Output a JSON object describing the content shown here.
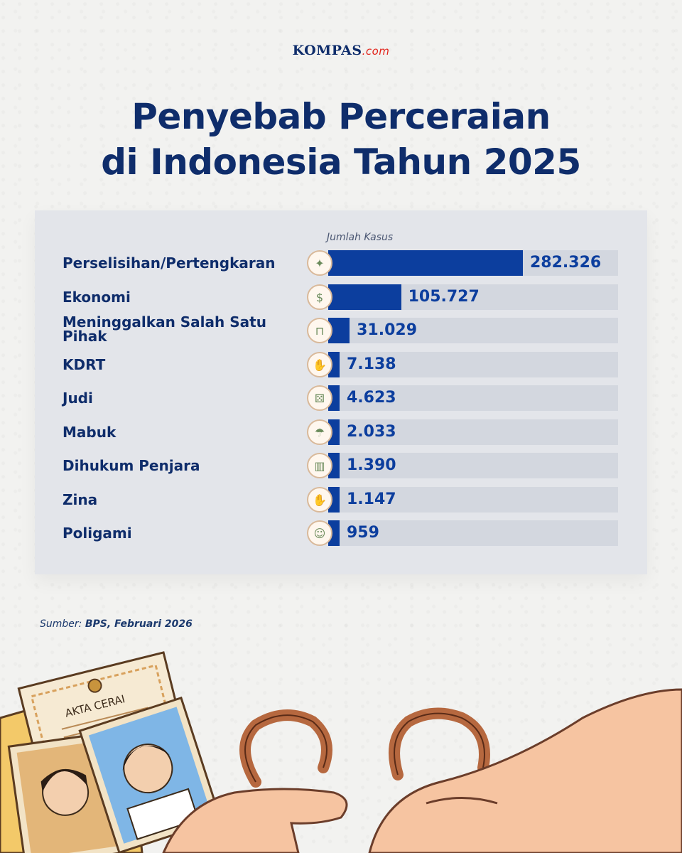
{
  "brand": {
    "name": "KOMPAS",
    "suffix": ".com"
  },
  "title_line1": "Penyebab Perceraian",
  "title_line2": "di Indonesia Tahun 2025",
  "source": {
    "prefix": "Sumber: ",
    "text": "BPS, Februari 2026"
  },
  "illustration": {
    "document_label": "AKTA CERAI"
  },
  "colors": {
    "bar": "#0c3e9e",
    "title": "#0f2d6b",
    "track": "#d3d7df",
    "panel": "#e3e5ea"
  },
  "chart_data": {
    "type": "bar",
    "orientation": "horizontal",
    "xlabel": "Jumlah Kasus",
    "categories": [
      "Perselisihan/Pertengkaran",
      "Ekonomi",
      "Meninggalkan Salah Satu Pihak",
      "KDRT",
      "Judi",
      "Mabuk",
      "Dihukum Penjara",
      "Zina",
      "Poligami"
    ],
    "values": [
      282326,
      105727,
      31029,
      7138,
      4623,
      2033,
      1390,
      1147,
      959
    ],
    "value_labels": [
      "282.326",
      "105.727",
      "31.029",
      "7.138",
      "4.623",
      "2.033",
      "1.390",
      "1.147",
      "959"
    ],
    "icons": [
      "argument-icon",
      "money-icon",
      "door-icon",
      "violence-icon",
      "dice-icon",
      "drunk-icon",
      "jail-icon",
      "handshake-icon",
      "polygamy-icon"
    ],
    "grid": false,
    "legend": "none"
  }
}
